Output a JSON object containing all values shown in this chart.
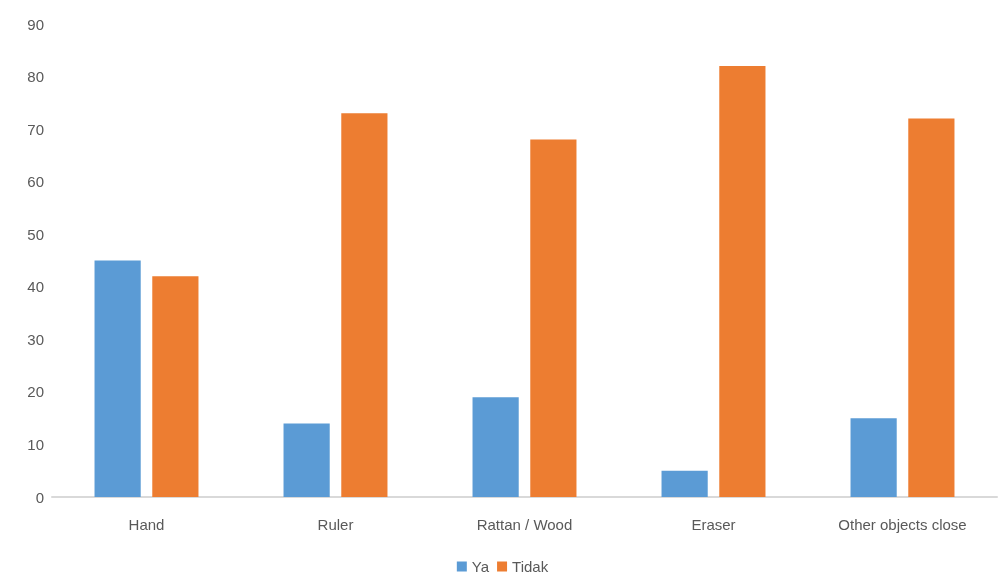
{
  "chart_data": {
    "type": "bar",
    "categories": [
      "Hand",
      "Ruler",
      "Rattan / Wood",
      "Eraser",
      "Other objects close"
    ],
    "series": [
      {
        "name": "Ya",
        "color": "#5b9bd5",
        "values": [
          45,
          14,
          19,
          5,
          15
        ]
      },
      {
        "name": "Tidak",
        "color": "#ed7d31",
        "values": [
          42,
          73,
          68,
          82,
          72
        ]
      }
    ],
    "ylim": [
      0,
      90
    ],
    "yticks": [
      0,
      10,
      20,
      30,
      40,
      50,
      60,
      70,
      80,
      90
    ],
    "grid": false,
    "legend": "bottom"
  }
}
